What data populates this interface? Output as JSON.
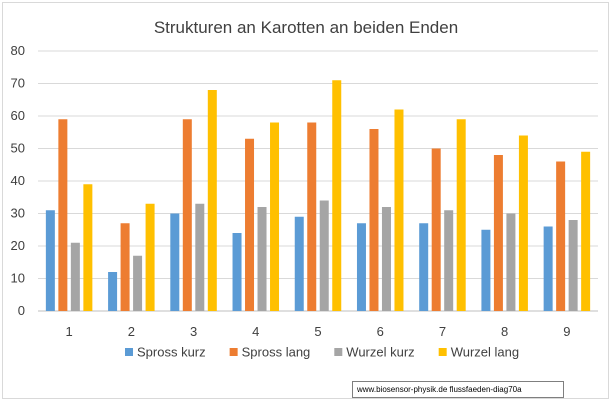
{
  "chart_data": {
    "type": "bar",
    "title": "Strukturen an Karotten an beiden Enden",
    "categories": [
      "1",
      "2",
      "3",
      "4",
      "5",
      "6",
      "7",
      "8",
      "9"
    ],
    "series": [
      {
        "name": "Spross kurz",
        "color": "#5b9bd5",
        "values": [
          31,
          12,
          30,
          24,
          29,
          27,
          27,
          25,
          26
        ]
      },
      {
        "name": "Spross lang",
        "color": "#ed7d31",
        "values": [
          59,
          27,
          59,
          53,
          58,
          56,
          50,
          48,
          46
        ]
      },
      {
        "name": "Wurzel kurz",
        "color": "#a5a5a5",
        "values": [
          21,
          17,
          33,
          32,
          34,
          32,
          31,
          30,
          28
        ]
      },
      {
        "name": "Wurzel lang",
        "color": "#ffc000",
        "values": [
          39,
          33,
          68,
          58,
          71,
          62,
          59,
          54,
          49
        ]
      }
    ],
    "yticks": [
      "0",
      "10",
      "20",
      "30",
      "40",
      "50",
      "60",
      "70",
      "80"
    ],
    "ylim": [
      0,
      80
    ],
    "grid": true,
    "legend_position": "bottom"
  },
  "source_label": "www.biosensor-physik.de  flussfaeden-diag70a"
}
